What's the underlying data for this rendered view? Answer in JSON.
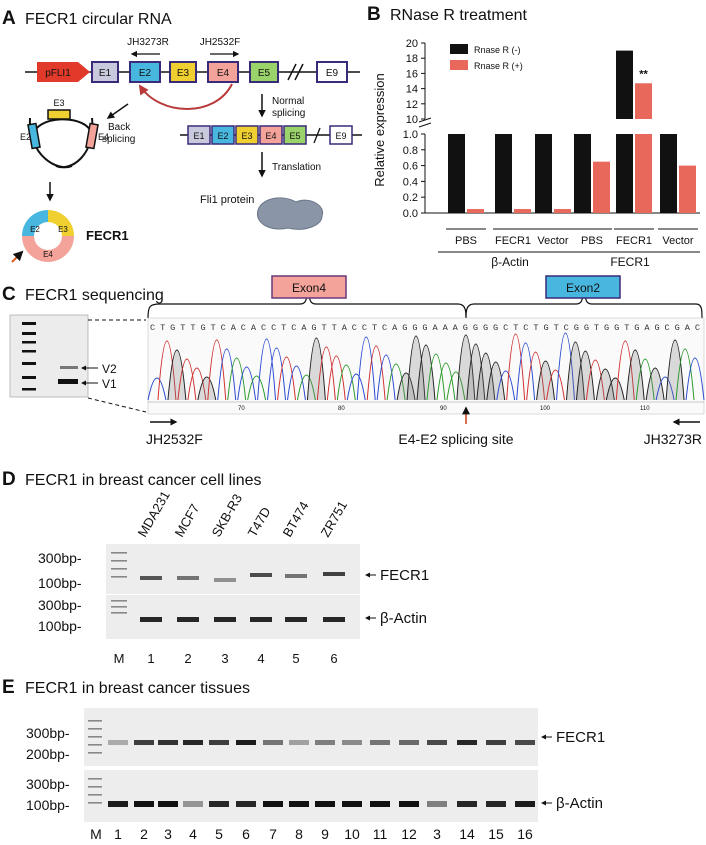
{
  "panels": {
    "A": {
      "letter": "A",
      "title": "FECR1 circular RNA",
      "promoter": "pFLI1",
      "exons": [
        "E1",
        "E2",
        "E3",
        "E4",
        "E5",
        "E9"
      ],
      "primer_r": "JH3273R",
      "primer_f": "JH2532F",
      "back_splicing": [
        "Back",
        "splicing"
      ],
      "normal_splicing": [
        "Normal",
        "splicing"
      ],
      "translation": "Translation",
      "protein": "Fli1 protein",
      "circ_exons": [
        "E3",
        "E2",
        "E4"
      ],
      "circ_ring_exons": [
        "E2",
        "E3",
        "E4"
      ],
      "circ_name": "FECR1",
      "mrna_exons": [
        "E1",
        "E2",
        "E3",
        "E4",
        "E5",
        "E9"
      ]
    },
    "B": {
      "letter": "B",
      "title": "RNase R treatment",
      "significance": "**",
      "group_labels": [
        "β-Actin",
        "FECR1"
      ]
    },
    "C": {
      "letter": "C",
      "title": "FECR1 sequencing",
      "band_labels": [
        "V2",
        "V1"
      ],
      "exon_labels": [
        "Exon4",
        "Exon2"
      ],
      "sequence": "CTGTTGTCACACCTCAGTTACCTCAGGGAAAGGGGCTCTGTCGGTGGTGAGCGAC",
      "seq_ticks": [
        "70",
        "80",
        "90",
        "100",
        "110"
      ],
      "primer_f": "JH2532F",
      "splice_site": "E4-E2 splicing site",
      "primer_r": "JH3273R"
    },
    "D": {
      "letter": "D",
      "title": "FECR1 in breast cancer cell lines",
      "cell_lines": [
        "MDA231",
        "MCF7",
        "SKB-R3",
        "T47D",
        "BT474",
        "ZR751"
      ],
      "size_labels_top": [
        "300bp-",
        "100bp-"
      ],
      "size_labels_bottom": [
        "300bp-",
        "100bp-"
      ],
      "gel_labels": [
        "FECR1",
        "β-Actin"
      ],
      "lanes": [
        "M",
        "1",
        "2",
        "3",
        "4",
        "5",
        "6"
      ]
    },
    "E": {
      "letter": "E",
      "title": "FECR1 in breast cancer tissues",
      "size_labels_top": [
        "300bp-",
        "200bp-"
      ],
      "size_labels_bottom": [
        "300bp-",
        "100bp-"
      ],
      "gel_labels": [
        "FECR1",
        "β-Actin"
      ],
      "lanes": [
        "M",
        "1",
        "2",
        "3",
        "4",
        "5",
        "6",
        "7",
        "8",
        "9",
        "10",
        "11",
        "12",
        "3",
        "14",
        "15",
        "16"
      ]
    }
  },
  "chart_data": {
    "type": "bar",
    "title": "RNase R treatment",
    "ylabel": "Relative expression",
    "categories": [
      "PBS",
      "FECR1",
      "Vector",
      "PBS",
      "FECR1",
      "Vector"
    ],
    "groups": [
      {
        "label": "β-Actin",
        "categories": [
          "PBS",
          "FECR1",
          "Vector"
        ]
      },
      {
        "label": "FECR1",
        "categories": [
          "PBS",
          "FECR1",
          "Vector"
        ]
      }
    ],
    "series": [
      {
        "name": "Rnase R (-)",
        "color": "#111111",
        "values": [
          1.0,
          1.0,
          1.0,
          1.0,
          19.0,
          1.0
        ]
      },
      {
        "name": "Rnase R (+)",
        "color": "#e8685c",
        "values": [
          0.05,
          0.05,
          0.05,
          0.65,
          14.7,
          0.6
        ]
      }
    ],
    "axis_break": true,
    "ylim_lower": [
      0,
      1.0
    ],
    "ylim_upper": [
      10,
      20
    ],
    "yticks_lower": [
      "0.0",
      "0.2",
      "0.4",
      "0.6",
      "0.8",
      "1.0"
    ],
    "yticks_upper": [
      "10",
      "12",
      "14",
      "16",
      "18",
      "20"
    ],
    "legend_position": "top-left",
    "grid": false
  }
}
